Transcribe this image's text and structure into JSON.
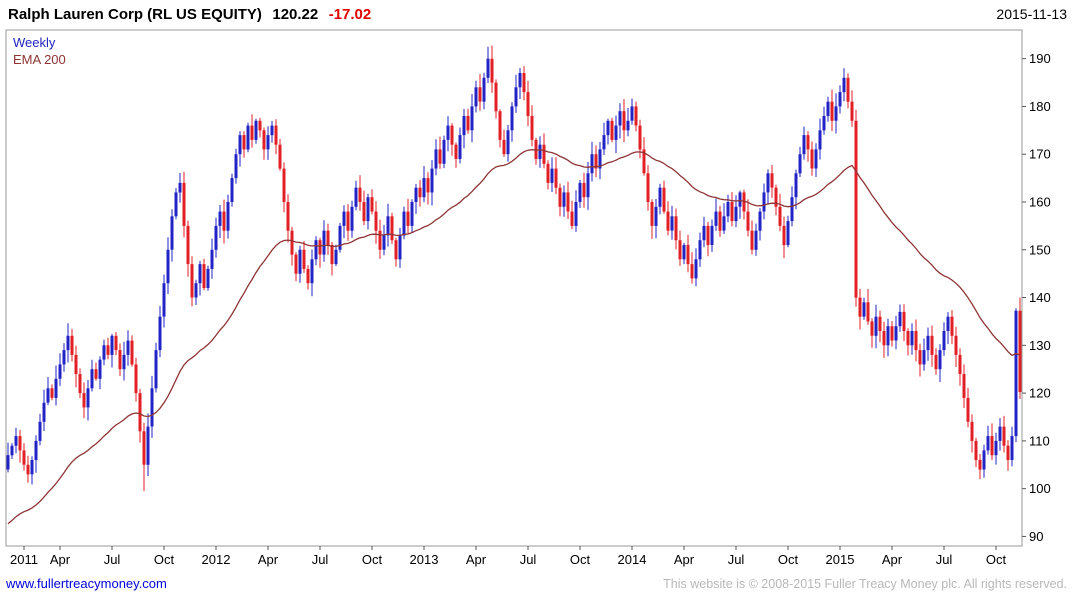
{
  "header": {
    "title": "Ralph Lauren Corp (RL US EQUITY)",
    "price": "120.22",
    "change": "-17.02",
    "date": "2015-11-13"
  },
  "legend": {
    "series1": "Weekly",
    "series2": "EMA 200"
  },
  "footer": {
    "link": "www.fullertreacymoney.com",
    "copyright": "This website is © 2008-2015 Fuller Treacy Money plc. All rights reserved."
  },
  "colors": {
    "up": "#2123c4",
    "down": "#e02025",
    "ema": "#8e3434",
    "frame": "#9a9a9a",
    "tick": "#555555",
    "axis_text": "#000000",
    "change": "#e00000",
    "link": "#0000dd",
    "copyright": "#b8b8b8"
  },
  "chart_data": {
    "type": "candlestick",
    "interval": "weekly",
    "title": "Ralph Lauren Corp (RL US EQUITY)",
    "last_price": 120.22,
    "change": -17.02,
    "as_of": "2015-11-13",
    "grid": false,
    "legend_position": "top-left",
    "ylim": [
      88,
      196
    ],
    "y_ticks": [
      90,
      100,
      110,
      120,
      130,
      140,
      150,
      160,
      170,
      180,
      190
    ],
    "x_ticks": [
      {
        "label": "2011",
        "week": 4
      },
      {
        "label": "Apr",
        "week": 13
      },
      {
        "label": "Jul",
        "week": 26
      },
      {
        "label": "Oct",
        "week": 39
      },
      {
        "label": "2012",
        "week": 52
      },
      {
        "label": "Apr",
        "week": 65
      },
      {
        "label": "Jul",
        "week": 78
      },
      {
        "label": "Oct",
        "week": 91
      },
      {
        "label": "2013",
        "week": 104
      },
      {
        "label": "Apr",
        "week": 117
      },
      {
        "label": "Jul",
        "week": 130
      },
      {
        "label": "Oct",
        "week": 143
      },
      {
        "label": "2014",
        "week": 156
      },
      {
        "label": "Apr",
        "week": 169
      },
      {
        "label": "Jul",
        "week": 182
      },
      {
        "label": "Oct",
        "week": 195
      },
      {
        "label": "2015",
        "week": 208
      },
      {
        "label": "Apr",
        "week": 221
      },
      {
        "label": "Jul",
        "week": 234
      },
      {
        "label": "Oct",
        "week": 247
      }
    ],
    "first_open": 104,
    "closes": [
      107,
      109,
      111,
      108,
      105,
      103,
      106,
      110,
      114,
      118,
      121,
      119,
      123,
      126,
      129,
      132,
      128,
      124,
      120,
      117,
      121,
      125,
      123,
      127,
      130,
      128,
      132,
      129,
      125,
      128,
      131,
      126,
      120,
      112,
      105,
      113,
      121,
      129,
      136,
      143,
      150,
      157,
      162,
      164,
      155,
      147,
      140,
      143,
      147,
      142,
      146,
      150,
      155,
      158,
      154,
      160,
      165,
      170,
      174,
      171,
      176,
      173,
      177,
      175,
      171,
      174,
      176,
      172,
      167,
      160,
      154,
      149,
      145,
      150,
      146,
      143,
      148,
      152,
      149,
      154,
      151,
      147,
      150,
      155,
      158,
      154,
      159,
      163,
      160,
      156,
      161,
      158,
      154,
      150,
      153,
      157,
      152,
      148,
      153,
      158,
      155,
      160,
      163,
      161,
      165,
      162,
      167,
      171,
      168,
      173,
      176,
      172,
      169,
      174,
      178,
      175,
      180,
      184,
      181,
      186,
      190,
      185,
      179,
      173,
      170,
      175,
      180,
      184,
      187,
      183,
      178,
      173,
      169,
      172,
      168,
      164,
      167,
      163,
      159,
      162,
      158,
      155,
      160,
      164,
      161,
      166,
      170,
      167,
      171,
      174,
      177,
      173,
      176,
      179,
      175,
      177,
      180,
      176,
      171,
      166,
      160,
      155,
      159,
      163,
      158,
      154,
      157,
      152,
      148,
      151,
      147,
      144,
      148,
      152,
      155,
      151,
      155,
      158,
      154,
      157,
      160,
      156,
      159,
      162,
      158,
      154,
      150,
      154,
      158,
      162,
      166,
      163,
      159,
      155,
      151,
      156,
      161,
      166,
      170,
      174,
      171,
      167,
      171,
      175,
      178,
      181,
      177,
      180,
      183,
      186,
      181,
      177,
      140,
      136,
      139,
      135,
      132,
      136,
      133,
      130,
      134,
      131,
      134,
      137,
      133,
      130,
      133,
      129,
      126,
      129,
      132,
      128,
      125,
      129,
      133,
      136,
      132,
      128,
      124,
      119,
      114,
      110,
      106,
      104,
      108,
      111,
      107,
      110,
      113,
      109,
      106,
      111,
      137.24,
      120.22
    ],
    "wick_overrides": {
      "34": {
        "low": 99.5
      },
      "120": {
        "high": 192.5
      },
      "209": {
        "high": 188
      },
      "243": {
        "low": 102
      }
    },
    "ema": {
      "label": "EMA 200",
      "period": 45,
      "start": 92
    }
  }
}
